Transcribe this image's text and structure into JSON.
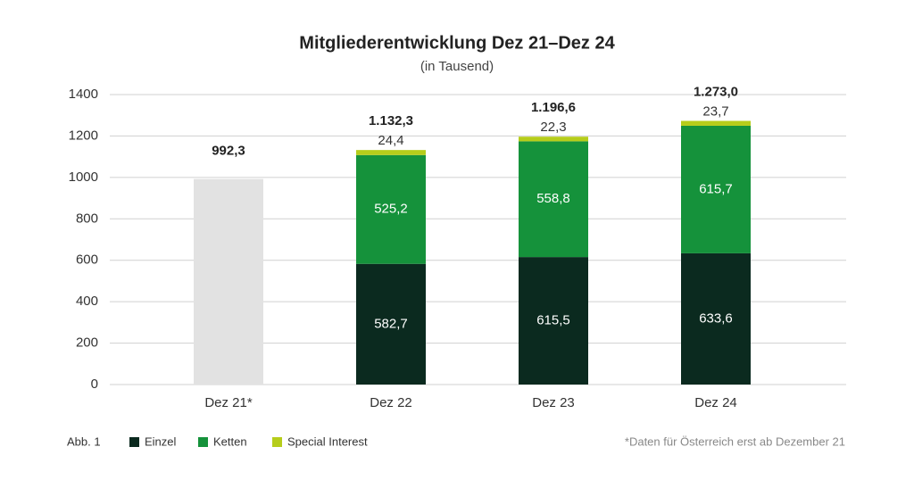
{
  "chart_data": {
    "type": "stacked_bar",
    "title": "Mitgliederentwicklung Dez 21–Dez 24",
    "subtitle": "(in Tausend)",
    "categories": [
      "Dez 21*",
      "Dez 22",
      "Dez 23",
      "Dez 24"
    ],
    "series": [
      {
        "name": "Einzel",
        "color": "#0b2a1f",
        "values": [
          null,
          582.7,
          615.5,
          633.6
        ],
        "value_labels": [
          null,
          "582,7",
          "615,5",
          "633,6"
        ]
      },
      {
        "name": "Ketten",
        "color": "#15923b",
        "values": [
          null,
          525.2,
          558.8,
          615.7
        ],
        "value_labels": [
          null,
          "525,2",
          "558,8",
          "615,7"
        ]
      },
      {
        "name": "Special Interest",
        "color": "#b6cd1b",
        "values": [
          null,
          24.4,
          22.3,
          23.7
        ],
        "value_labels": [
          null,
          "24,4",
          "22,3",
          "23,7"
        ]
      }
    ],
    "totals": {
      "color": "#e2e2e2",
      "values": [
        992.3,
        1132.3,
        1196.6,
        1273.0
      ],
      "value_labels": [
        "992,3",
        "1.132,3",
        "1.196,6",
        "1.273,0"
      ]
    },
    "ylim": [
      0,
      1400
    ],
    "yticks": [
      0,
      200,
      400,
      600,
      800,
      1000,
      1200,
      1400
    ],
    "grid": true,
    "legend_prefix": "Abb. 1",
    "footnote": "*Daten für Österreich erst ab Dezember 21"
  }
}
